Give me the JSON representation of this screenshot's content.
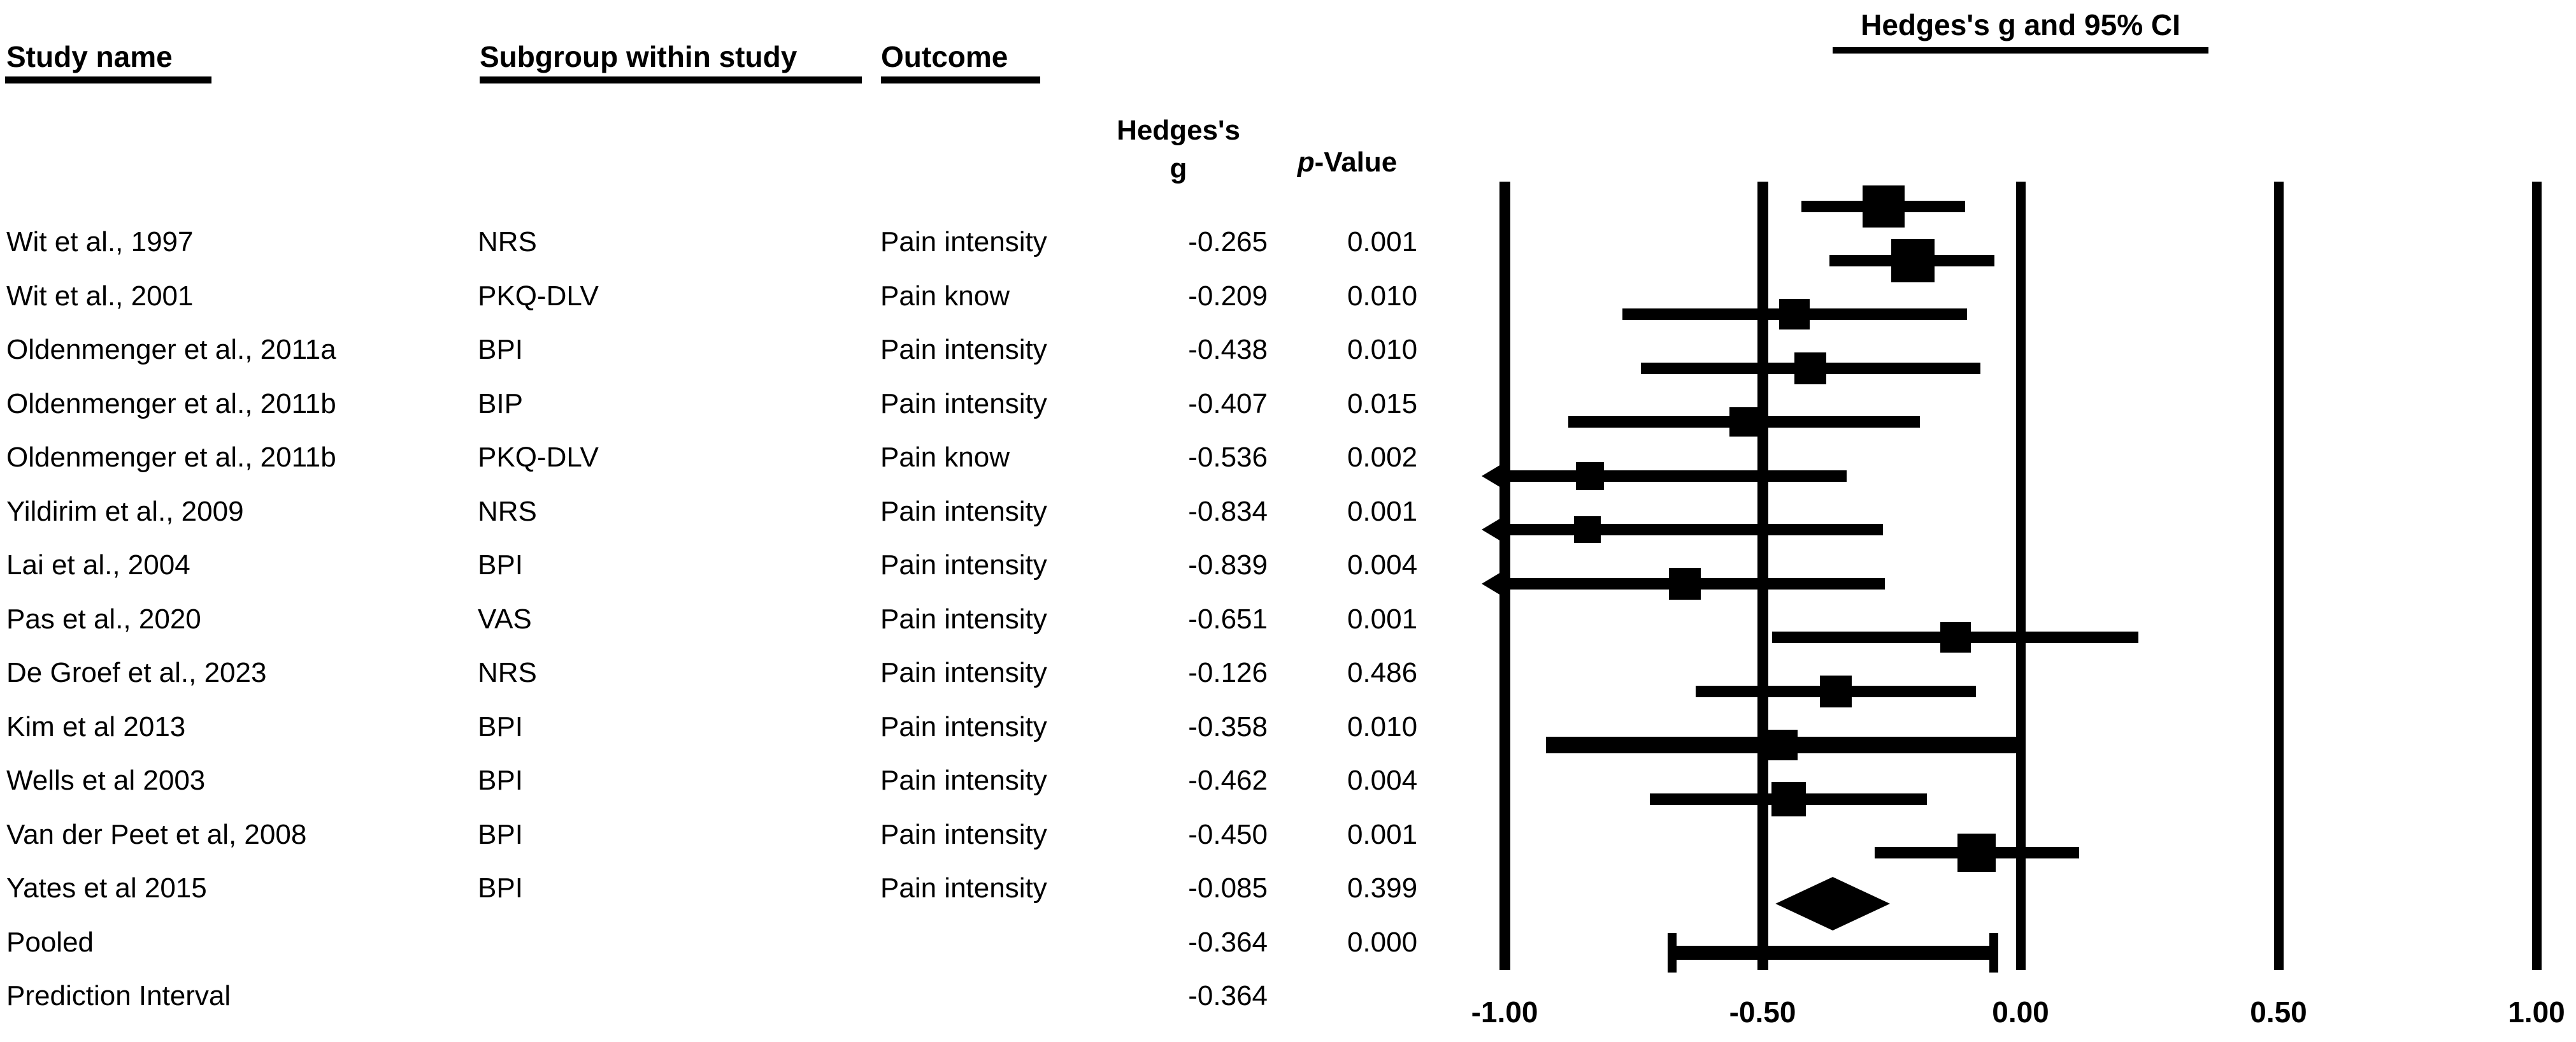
{
  "figure_title": "Hedges's g and 95% CI",
  "colors": {
    "ink": "#000000",
    "background": "#ffffff"
  },
  "columns": {
    "study": "Study name",
    "subgroup": "Subgroup within study",
    "outcome": "Outcome",
    "effect_line1": "Hedges's",
    "effect_line2": "g",
    "p_italic": "p",
    "p_rest": "-Value"
  },
  "axis": {
    "ticks": [
      {
        "label": "-1.00",
        "value": -1.0
      },
      {
        "label": "-0.50",
        "value": -0.5
      },
      {
        "label": "0.00",
        "value": 0.0
      },
      {
        "label": "0.50",
        "value": 0.5
      },
      {
        "label": "1.00",
        "value": 1.0
      }
    ]
  },
  "chart_data": {
    "type": "forest",
    "title": "Hedges's g and 95% CI",
    "xlabel": "Hedges's g",
    "xlim": [
      -1.0,
      1.0
    ],
    "x_ticks": [
      -1.0,
      -0.5,
      0.0,
      0.5,
      1.0
    ],
    "x_tick_labels": [
      "-1.00",
      "-0.50",
      "0.00",
      "0.50",
      "1.00"
    ],
    "grid": "vertical-reference-lines",
    "legend": "none",
    "rows": [
      {
        "kind": "study",
        "study": "Wit et al., 1997",
        "subgroup": "NRS",
        "outcome": "Pain intensity",
        "g_label": "-0.265",
        "p_label": "0.001",
        "g": -0.265,
        "ci": [
          -0.425,
          -0.107
        ],
        "arrow_low": false,
        "square": 66,
        "thick": 18
      },
      {
        "kind": "study",
        "study": "Wit et al., 2001",
        "subgroup": "PKQ-DLV",
        "outcome": "Pain know",
        "g_label": "-0.209",
        "p_label": "0.010",
        "g": -0.209,
        "ci": [
          -0.37,
          -0.051
        ],
        "arrow_low": false,
        "square": 68,
        "thick": 18
      },
      {
        "kind": "study",
        "study": "Oldenmenger et al., 2011a",
        "subgroup": "BPI",
        "outcome": "Pain intensity",
        "g_label": "-0.438",
        "p_label": "0.010",
        "g": -0.438,
        "ci": [
          -0.772,
          -0.104
        ],
        "arrow_low": false,
        "square": 48,
        "thick": 18
      },
      {
        "kind": "study",
        "study": "Oldenmenger et al., 2011b",
        "subgroup": "BIP",
        "outcome": "Pain intensity",
        "g_label": "-0.407",
        "p_label": "0.015",
        "g": -0.407,
        "ci": [
          -0.736,
          -0.078
        ],
        "arrow_low": false,
        "square": 50,
        "thick": 18
      },
      {
        "kind": "study",
        "study": "Oldenmenger et al., 2011b",
        "subgroup": "PKQ-DLV",
        "outcome": "Pain know",
        "g_label": "-0.536",
        "p_label": "0.002",
        "g": -0.536,
        "ci": [
          -0.877,
          -0.195
        ],
        "arrow_low": false,
        "square": 46,
        "thick": 18
      },
      {
        "kind": "study",
        "study": "Yildirim et al., 2009",
        "subgroup": "NRS",
        "outcome": "Pain intensity",
        "g_label": "-0.834",
        "p_label": "0.001",
        "g": -0.834,
        "ci": [
          -1.0,
          -0.337
        ],
        "arrow_low": true,
        "square": 44,
        "thick": 18
      },
      {
        "kind": "study",
        "study": "Lai et al., 2004",
        "subgroup": "BPI",
        "outcome": "Pain intensity",
        "g_label": "-0.839",
        "p_label": "0.004",
        "g": -0.839,
        "ci": [
          -1.0,
          -0.267
        ],
        "arrow_low": true,
        "square": 42,
        "thick": 18
      },
      {
        "kind": "study",
        "study": "Pas et al., 2020",
        "subgroup": "VAS",
        "outcome": "Pain intensity",
        "g_label": "-0.651",
        "p_label": "0.001",
        "g": -0.651,
        "ci": [
          -1.0,
          -0.263
        ],
        "arrow_low": true,
        "square": 50,
        "thick": 18
      },
      {
        "kind": "study",
        "study": "De Groef et al., 2023",
        "subgroup": "NRS",
        "outcome": "Pain intensity",
        "g_label": "-0.126",
        "p_label": "0.486",
        "g": -0.126,
        "ci": [
          -0.481,
          0.229
        ],
        "arrow_low": false,
        "square": 48,
        "thick": 18
      },
      {
        "kind": "study",
        "study": "Kim et al 2013",
        "subgroup": "BPI",
        "outcome": "Pain intensity",
        "g_label": "-0.358",
        "p_label": "0.010",
        "g": -0.358,
        "ci": [
          -0.63,
          -0.086
        ],
        "arrow_low": false,
        "square": 50,
        "thick": 18
      },
      {
        "kind": "study",
        "study": "Wells et al 2003",
        "subgroup": "BPI",
        "outcome": "Pain intensity",
        "g_label": "-0.462",
        "p_label": "0.004",
        "g": -0.462,
        "ci": [
          -0.92,
          -0.005
        ],
        "arrow_low": false,
        "square": 48,
        "thick": 26
      },
      {
        "kind": "study",
        "study": "Van der Peet et al, 2008",
        "subgroup": "BPI",
        "outcome": "Pain intensity",
        "g_label": "-0.450",
        "p_label": "0.001",
        "g": -0.45,
        "ci": [
          -0.718,
          -0.182
        ],
        "arrow_low": false,
        "square": 54,
        "thick": 18
      },
      {
        "kind": "study",
        "study": "Yates et al 2015",
        "subgroup": "BPI",
        "outcome": "Pain intensity",
        "g_label": "-0.085",
        "p_label": "0.399",
        "g": -0.085,
        "ci": [
          -0.283,
          0.113
        ],
        "arrow_low": false,
        "square": 60,
        "thick": 18
      },
      {
        "kind": "pooled",
        "study": "Pooled",
        "subgroup": "",
        "outcome": "",
        "g_label": "-0.364",
        "p_label": "0.000",
        "g": -0.364,
        "ci": [
          -0.475,
          -0.253
        ]
      },
      {
        "kind": "prediction",
        "study": "Prediction Interval",
        "subgroup": "",
        "outcome": "",
        "g_label": "-0.364",
        "p_label": "",
        "g": -0.364,
        "ci": [
          -0.675,
          -0.052
        ]
      }
    ]
  }
}
